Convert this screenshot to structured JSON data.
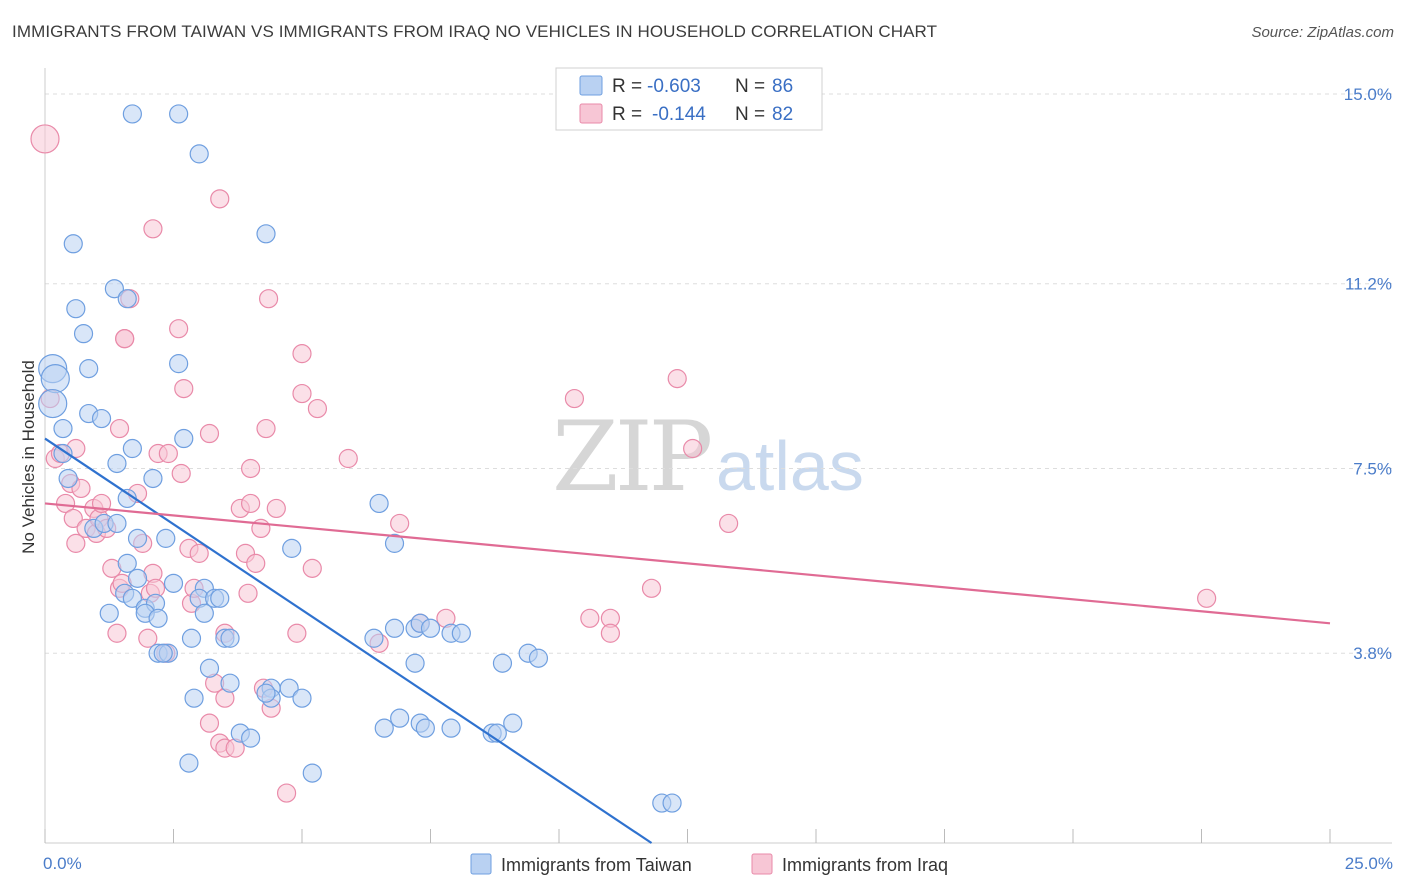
{
  "title": "IMMIGRANTS FROM TAIWAN VS IMMIGRANTS FROM IRAQ NO VEHICLES IN HOUSEHOLD CORRELATION CHART",
  "source": "Source: ZipAtlas.com",
  "watermark": {
    "zip": "ZIP",
    "atlas": "atlas"
  },
  "colors": {
    "taiwan": "#6f9fe0",
    "taiwan_fill": "#b9d1f2",
    "taiwan_line": "#2f72cf",
    "iraq": "#e98aa9",
    "iraq_fill": "#f7c6d5",
    "iraq_line": "#e06b94",
    "grid": "#dddddd",
    "axis_text": "#4a7cc9"
  },
  "legend": {
    "rows": [
      {
        "r_label": "R =",
        "r_value": "-0.603",
        "n_label": "N =",
        "n_value": "86"
      },
      {
        "r_label": "R =",
        "r_value": "-0.144",
        "n_label": "N =",
        "n_value": "82"
      }
    ]
  },
  "bottom_legend": {
    "taiwan": "Immigrants from Taiwan",
    "iraq": "Immigrants from Iraq"
  },
  "chart_data": {
    "type": "scatter",
    "title": "IMMIGRANTS FROM TAIWAN VS IMMIGRANTS FROM IRAQ NO VEHICLES IN HOUSEHOLD CORRELATION CHART",
    "xlabel": "",
    "ylabel": "No Vehicles in Household",
    "xlim": [
      0,
      25
    ],
    "ylim": [
      0,
      15.4
    ],
    "x_tick_labels": [
      "0.0%",
      "25.0%"
    ],
    "y_ticks": [
      3.8,
      7.5,
      11.2,
      15.0
    ],
    "y_tick_labels": [
      "3.8%",
      "7.5%",
      "11.2%",
      "15.0%"
    ],
    "grid": true,
    "legend_position": "top-center",
    "series": [
      {
        "name": "Immigrants from Taiwan",
        "R": -0.603,
        "N": 86,
        "trend": {
          "x0": 0.0,
          "y0": 8.1,
          "x1": 11.8,
          "y1": 0.0
        },
        "points": [
          [
            0.15,
            9.5
          ],
          [
            0.2,
            9.3
          ],
          [
            0.15,
            8.8
          ],
          [
            0.35,
            8.3
          ],
          [
            0.35,
            7.8
          ],
          [
            0.45,
            7.3
          ],
          [
            0.55,
            12.0
          ],
          [
            0.6,
            10.7
          ],
          [
            0.75,
            10.2
          ],
          [
            0.85,
            9.5
          ],
          [
            0.85,
            8.6
          ],
          [
            1.1,
            8.5
          ],
          [
            1.35,
            11.1
          ],
          [
            1.6,
            10.9
          ],
          [
            1.7,
            14.6
          ],
          [
            2.6,
            14.6
          ],
          [
            3.0,
            13.8
          ],
          [
            4.3,
            12.2
          ],
          [
            1.4,
            7.6
          ],
          [
            1.7,
            7.9
          ],
          [
            1.6,
            6.9
          ],
          [
            2.1,
            7.3
          ],
          [
            2.7,
            8.1
          ],
          [
            2.6,
            9.6
          ],
          [
            0.95,
            6.3
          ],
          [
            1.15,
            6.4
          ],
          [
            1.4,
            6.4
          ],
          [
            1.8,
            6.1
          ],
          [
            2.35,
            6.1
          ],
          [
            1.6,
            5.6
          ],
          [
            1.8,
            5.3
          ],
          [
            2.5,
            5.2
          ],
          [
            3.1,
            5.1
          ],
          [
            1.55,
            5.0
          ],
          [
            1.7,
            4.9
          ],
          [
            3.0,
            4.9
          ],
          [
            3.3,
            4.9
          ],
          [
            1.95,
            4.7
          ],
          [
            2.15,
            4.8
          ],
          [
            1.25,
            4.6
          ],
          [
            1.95,
            4.6
          ],
          [
            2.2,
            4.5
          ],
          [
            3.1,
            4.6
          ],
          [
            3.4,
            4.9
          ],
          [
            2.85,
            4.1
          ],
          [
            3.5,
            4.1
          ],
          [
            3.6,
            4.1
          ],
          [
            2.2,
            3.8
          ],
          [
            2.4,
            3.8
          ],
          [
            3.2,
            3.5
          ],
          [
            2.9,
            2.9
          ],
          [
            3.6,
            3.2
          ],
          [
            4.4,
            3.1
          ],
          [
            4.75,
            3.1
          ],
          [
            5.0,
            2.9
          ],
          [
            4.4,
            2.9
          ],
          [
            3.8,
            2.2
          ],
          [
            4.0,
            2.1
          ],
          [
            2.8,
            1.6
          ],
          [
            5.2,
            1.4
          ],
          [
            4.8,
            5.9
          ],
          [
            6.4,
            4.1
          ],
          [
            6.8,
            4.3
          ],
          [
            7.2,
            4.3
          ],
          [
            7.3,
            4.4
          ],
          [
            7.5,
            4.3
          ],
          [
            7.9,
            4.2
          ],
          [
            8.1,
            4.2
          ],
          [
            7.2,
            3.6
          ],
          [
            8.9,
            3.6
          ],
          [
            9.4,
            3.8
          ],
          [
            9.6,
            3.7
          ],
          [
            6.9,
            2.5
          ],
          [
            7.3,
            2.4
          ],
          [
            7.4,
            2.3
          ],
          [
            6.6,
            2.3
          ],
          [
            7.9,
            2.3
          ],
          [
            8.7,
            2.2
          ],
          [
            8.8,
            2.2
          ],
          [
            9.1,
            2.4
          ],
          [
            6.5,
            6.8
          ],
          [
            6.8,
            6.0
          ],
          [
            12.0,
            0.8
          ],
          [
            12.2,
            0.8
          ],
          [
            2.3,
            3.8
          ],
          [
            4.3,
            3.0
          ]
        ]
      },
      {
        "name": "Immigrants from Iraq",
        "R": -0.144,
        "N": 82,
        "trend": {
          "x0": 0.0,
          "y0": 6.8,
          "x1": 25.0,
          "y1": 4.4
        },
        "points": [
          [
            0.0,
            14.1
          ],
          [
            0.1,
            8.9
          ],
          [
            0.2,
            7.7
          ],
          [
            0.3,
            7.8
          ],
          [
            0.4,
            6.8
          ],
          [
            0.5,
            7.2
          ],
          [
            0.55,
            6.5
          ],
          [
            0.6,
            7.9
          ],
          [
            0.6,
            6.0
          ],
          [
            0.7,
            7.1
          ],
          [
            0.8,
            6.3
          ],
          [
            0.95,
            6.7
          ],
          [
            1.0,
            6.2
          ],
          [
            1.05,
            6.5
          ],
          [
            1.1,
            6.8
          ],
          [
            1.2,
            6.3
          ],
          [
            1.3,
            5.5
          ],
          [
            1.45,
            5.1
          ],
          [
            1.5,
            5.2
          ],
          [
            1.4,
            4.2
          ],
          [
            1.45,
            8.3
          ],
          [
            1.55,
            10.1
          ],
          [
            1.55,
            10.1
          ],
          [
            1.65,
            10.9
          ],
          [
            1.8,
            7.0
          ],
          [
            1.9,
            6.0
          ],
          [
            2.0,
            4.1
          ],
          [
            2.05,
            5.0
          ],
          [
            2.1,
            5.4
          ],
          [
            2.1,
            12.3
          ],
          [
            2.15,
            5.1
          ],
          [
            2.2,
            7.8
          ],
          [
            2.35,
            3.8
          ],
          [
            2.4,
            7.8
          ],
          [
            2.6,
            10.3
          ],
          [
            2.65,
            7.4
          ],
          [
            2.7,
            9.1
          ],
          [
            2.8,
            5.9
          ],
          [
            2.85,
            4.8
          ],
          [
            2.9,
            5.1
          ],
          [
            3.0,
            5.8
          ],
          [
            3.2,
            8.2
          ],
          [
            3.2,
            2.4
          ],
          [
            3.3,
            3.2
          ],
          [
            3.4,
            2.0
          ],
          [
            3.5,
            1.9
          ],
          [
            3.5,
            2.9
          ],
          [
            3.5,
            4.2
          ],
          [
            3.7,
            1.9
          ],
          [
            3.8,
            6.7
          ],
          [
            3.9,
            5.8
          ],
          [
            3.95,
            5.0
          ],
          [
            4.0,
            6.8
          ],
          [
            4.1,
            5.6
          ],
          [
            4.2,
            6.3
          ],
          [
            4.25,
            3.1
          ],
          [
            4.3,
            8.3
          ],
          [
            4.35,
            10.9
          ],
          [
            4.4,
            2.7
          ],
          [
            4.5,
            6.7
          ],
          [
            4.7,
            1.0
          ],
          [
            4.9,
            4.2
          ],
          [
            5.0,
            9.0
          ],
          [
            5.0,
            9.8
          ],
          [
            5.2,
            5.5
          ],
          [
            5.3,
            8.7
          ],
          [
            5.9,
            7.7
          ],
          [
            6.5,
            4.0
          ],
          [
            6.9,
            6.4
          ],
          [
            7.3,
            4.4
          ],
          [
            7.8,
            4.5
          ],
          [
            10.3,
            8.9
          ],
          [
            10.6,
            4.5
          ],
          [
            11.0,
            4.5
          ],
          [
            11.0,
            4.2
          ],
          [
            11.8,
            5.1
          ],
          [
            12.3,
            9.3
          ],
          [
            12.6,
            7.9
          ],
          [
            13.3,
            6.4
          ],
          [
            22.6,
            4.9
          ],
          [
            3.4,
            12.9
          ],
          [
            4.0,
            7.5
          ]
        ]
      }
    ]
  }
}
